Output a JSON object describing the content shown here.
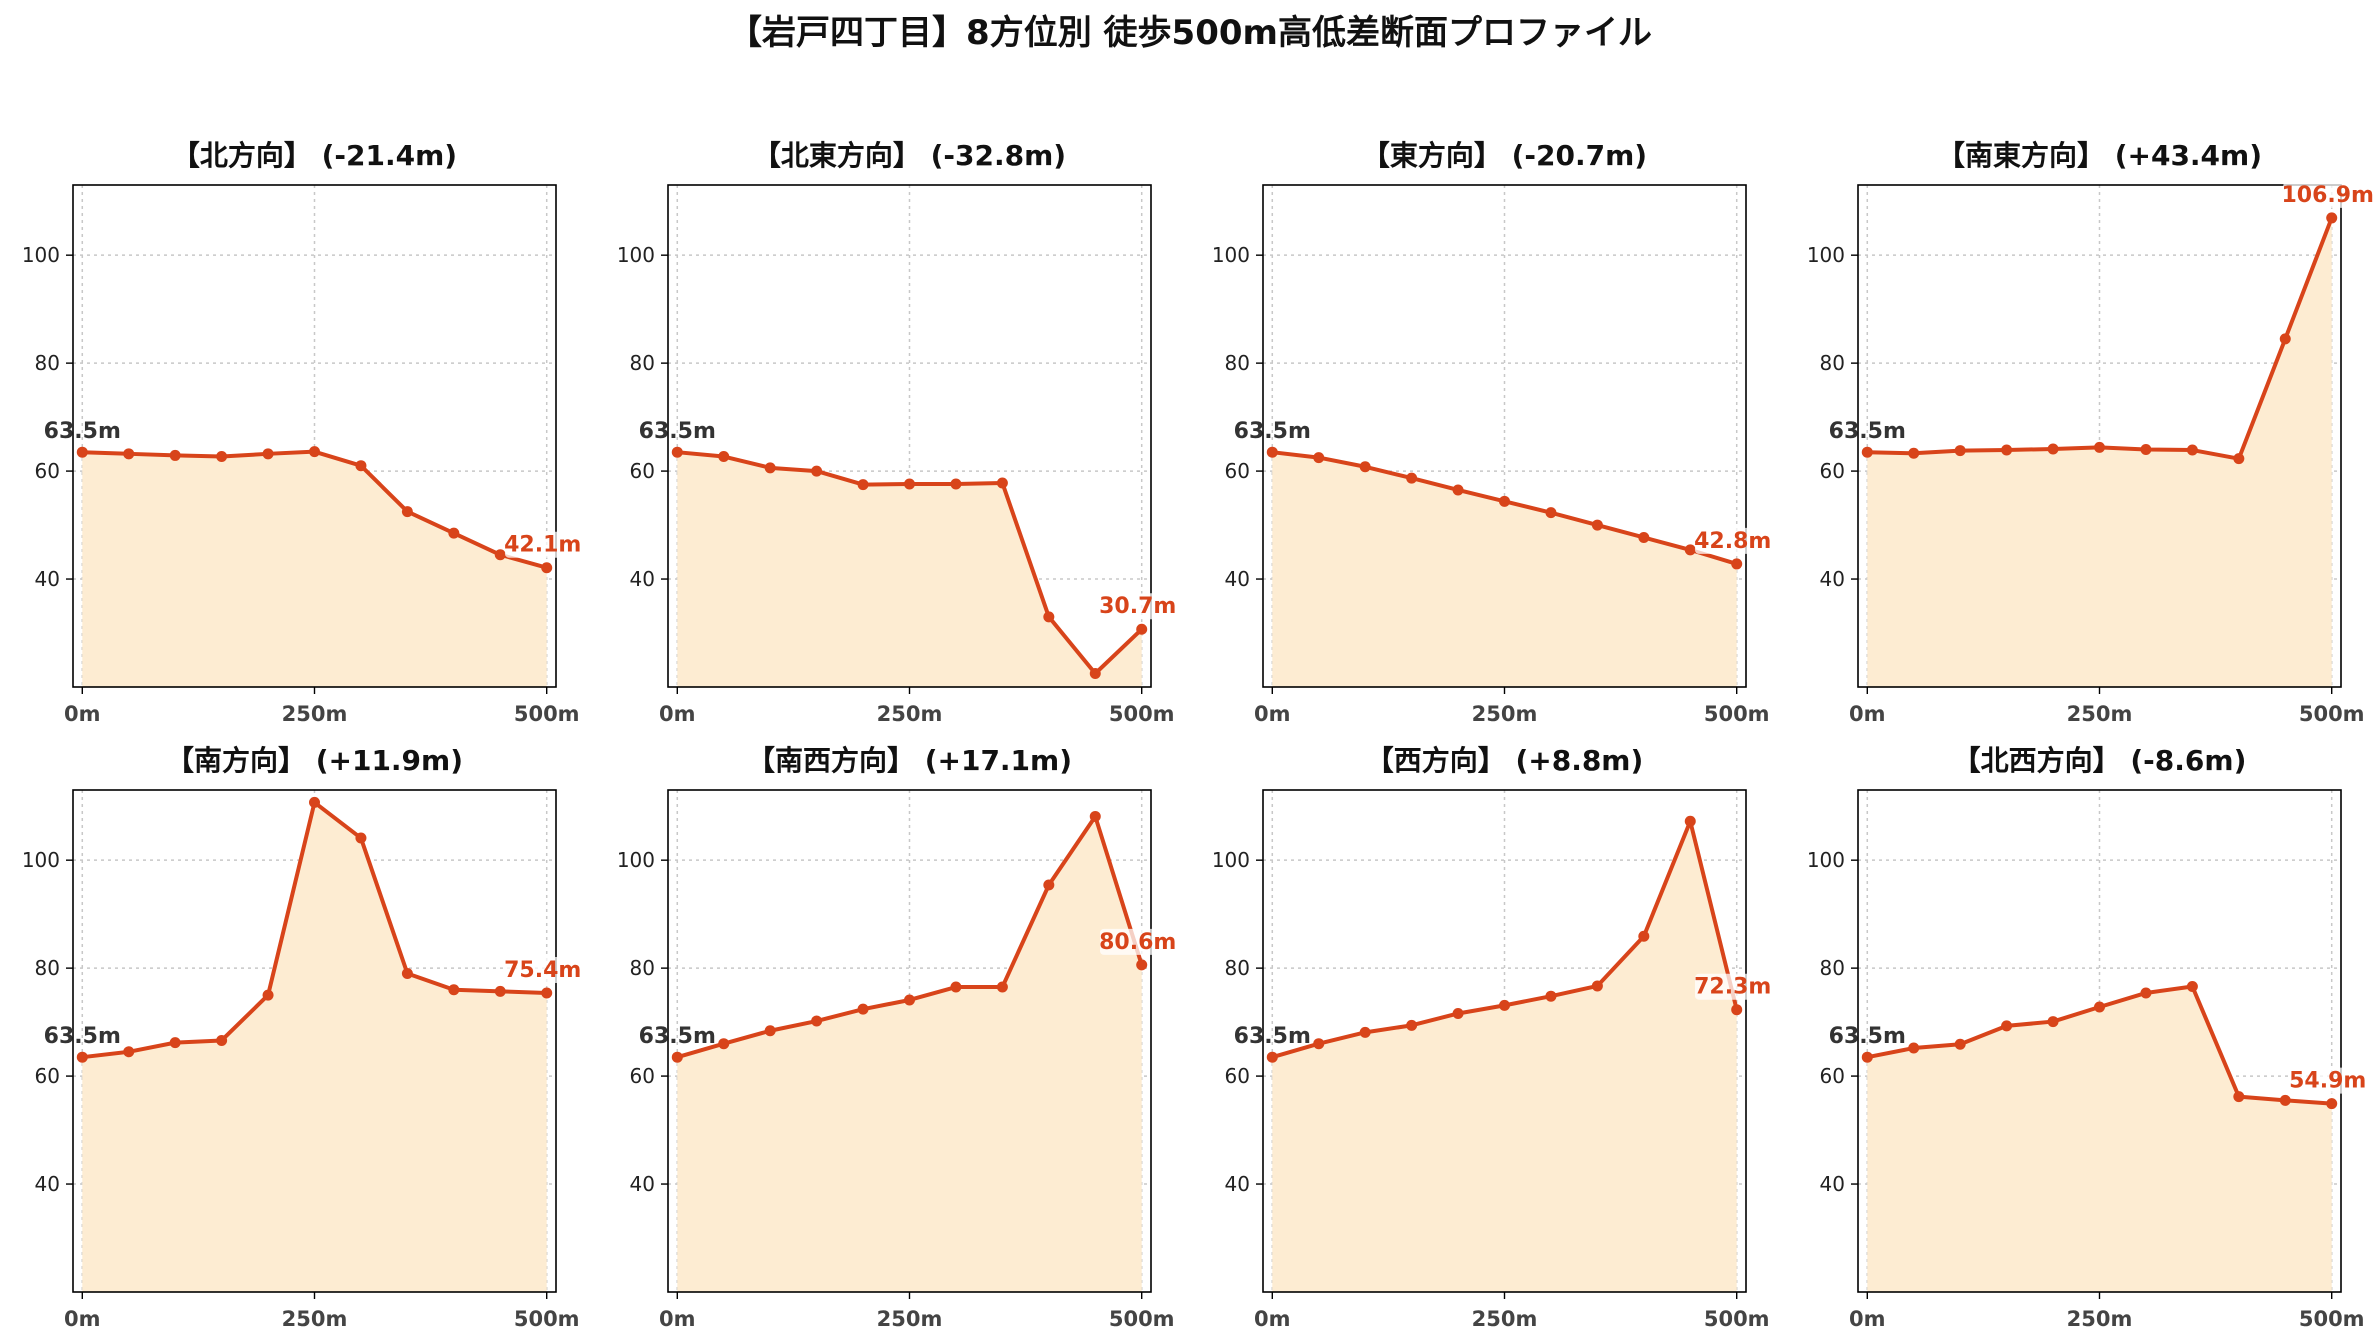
{
  "title": "【岩戸四丁目】8方位別 徒歩500m高低差断面プロファイル",
  "colors": {
    "line": "#d8441a",
    "fill": "#fdecd2",
    "grid": "#c8c8c8",
    "axis": "#000000"
  },
  "chart_data": [
    {
      "type": "area",
      "title": "【北方向】 (-21.4m)",
      "x": [
        0,
        50,
        100,
        150,
        200,
        250,
        300,
        350,
        400,
        450,
        500
      ],
      "y": [
        63.5,
        63.2,
        62.9,
        62.7,
        63.2,
        63.6,
        61.0,
        52.5,
        48.5,
        44.5,
        42.1
      ],
      "xlim": [
        -10,
        510
      ],
      "ylim": [
        20,
        113
      ],
      "xticks": [
        0,
        250,
        500
      ],
      "xtick_labels": [
        "0m",
        "250m",
        "500m"
      ],
      "yticks": [
        40,
        60,
        80,
        100
      ],
      "ytick_labels": [
        "40",
        "60",
        "80",
        "100"
      ],
      "start_label": "63.5m",
      "end_label": "42.1m",
      "grid": true
    },
    {
      "type": "area",
      "title": "【北東方向】 (-32.8m)",
      "x": [
        0,
        50,
        100,
        150,
        200,
        250,
        300,
        350,
        400,
        450,
        500
      ],
      "y": [
        63.5,
        62.7,
        60.6,
        60.0,
        57.5,
        57.6,
        57.6,
        57.8,
        33.0,
        22.5,
        30.7
      ],
      "xlim": [
        -10,
        510
      ],
      "ylim": [
        20,
        113
      ],
      "xticks": [
        0,
        250,
        500
      ],
      "xtick_labels": [
        "0m",
        "250m",
        "500m"
      ],
      "yticks": [
        40,
        60,
        80,
        100
      ],
      "ytick_labels": [
        "40",
        "60",
        "80",
        "100"
      ],
      "start_label": "63.5m",
      "end_label": "30.7m",
      "grid": true
    },
    {
      "type": "area",
      "title": "【東方向】 (-20.7m)",
      "x": [
        0,
        50,
        100,
        150,
        200,
        250,
        300,
        350,
        400,
        450,
        500
      ],
      "y": [
        63.5,
        62.5,
        60.8,
        58.7,
        56.5,
        54.4,
        52.3,
        50.0,
        47.7,
        45.4,
        42.8
      ],
      "xlim": [
        -10,
        510
      ],
      "ylim": [
        20,
        113
      ],
      "xticks": [
        0,
        250,
        500
      ],
      "xtick_labels": [
        "0m",
        "250m",
        "500m"
      ],
      "yticks": [
        40,
        60,
        80,
        100
      ],
      "ytick_labels": [
        "40",
        "60",
        "80",
        "100"
      ],
      "start_label": "63.5m",
      "end_label": "42.8m",
      "grid": true
    },
    {
      "type": "area",
      "title": "【南東方向】 (+43.4m)",
      "x": [
        0,
        50,
        100,
        150,
        200,
        250,
        300,
        350,
        400,
        450,
        500
      ],
      "y": [
        63.5,
        63.3,
        63.8,
        63.9,
        64.1,
        64.4,
        64.0,
        63.9,
        62.3,
        84.5,
        106.9
      ],
      "xlim": [
        -10,
        510
      ],
      "ylim": [
        20,
        113
      ],
      "xticks": [
        0,
        250,
        500
      ],
      "xtick_labels": [
        "0m",
        "250m",
        "500m"
      ],
      "yticks": [
        40,
        60,
        80,
        100
      ],
      "ytick_labels": [
        "40",
        "60",
        "80",
        "100"
      ],
      "start_label": "63.5m",
      "end_label": "106.9m",
      "grid": true
    },
    {
      "type": "area",
      "title": "【南方向】 (+11.9m)",
      "x": [
        0,
        50,
        100,
        150,
        200,
        250,
        300,
        350,
        400,
        450,
        500
      ],
      "y": [
        63.5,
        64.5,
        66.2,
        66.6,
        75.0,
        110.7,
        104.1,
        79.0,
        76.0,
        75.7,
        75.4
      ],
      "xlim": [
        -10,
        510
      ],
      "ylim": [
        20,
        113
      ],
      "xticks": [
        0,
        250,
        500
      ],
      "xtick_labels": [
        "0m",
        "250m",
        "500m"
      ],
      "yticks": [
        40,
        60,
        80,
        100
      ],
      "ytick_labels": [
        "40",
        "60",
        "80",
        "100"
      ],
      "start_label": "63.5m",
      "end_label": "75.4m",
      "grid": true
    },
    {
      "type": "area",
      "title": "【南西方向】 (+17.1m)",
      "x": [
        0,
        50,
        100,
        150,
        200,
        250,
        300,
        350,
        400,
        450,
        500
      ],
      "y": [
        63.5,
        66.0,
        68.4,
        70.2,
        72.4,
        74.1,
        76.5,
        76.5,
        95.4,
        108.1,
        80.6
      ],
      "xlim": [
        -10,
        510
      ],
      "ylim": [
        20,
        113
      ],
      "xticks": [
        0,
        250,
        500
      ],
      "xtick_labels": [
        "0m",
        "250m",
        "500m"
      ],
      "yticks": [
        40,
        60,
        80,
        100
      ],
      "ytick_labels": [
        "40",
        "60",
        "80",
        "100"
      ],
      "start_label": "63.5m",
      "end_label": "80.6m",
      "grid": true
    },
    {
      "type": "area",
      "title": "【西方向】 (+8.8m)",
      "x": [
        0,
        50,
        100,
        150,
        200,
        250,
        300,
        350,
        400,
        450,
        500
      ],
      "y": [
        63.5,
        66.0,
        68.1,
        69.4,
        71.6,
        73.1,
        74.8,
        76.7,
        85.9,
        107.2,
        72.3
      ],
      "xlim": [
        -10,
        510
      ],
      "ylim": [
        20,
        113
      ],
      "xticks": [
        0,
        250,
        500
      ],
      "xtick_labels": [
        "0m",
        "250m",
        "500m"
      ],
      "yticks": [
        40,
        60,
        80,
        100
      ],
      "ytick_labels": [
        "40",
        "60",
        "80",
        "100"
      ],
      "start_label": "63.5m",
      "end_label": "72.3m",
      "grid": true
    },
    {
      "type": "area",
      "title": "【北西方向】 (-8.6m)",
      "x": [
        0,
        50,
        100,
        150,
        200,
        250,
        300,
        350,
        400,
        450,
        500
      ],
      "y": [
        63.5,
        65.2,
        65.9,
        69.3,
        70.1,
        72.8,
        75.4,
        76.6,
        56.2,
        55.5,
        54.9
      ],
      "xlim": [
        -10,
        510
      ],
      "ylim": [
        20,
        113
      ],
      "xticks": [
        0,
        250,
        500
      ],
      "xtick_labels": [
        "0m",
        "250m",
        "500m"
      ],
      "yticks": [
        40,
        60,
        80,
        100
      ],
      "ytick_labels": [
        "40",
        "60",
        "80",
        "100"
      ],
      "start_label": "63.5m",
      "end_label": "54.9m",
      "grid": true
    }
  ]
}
